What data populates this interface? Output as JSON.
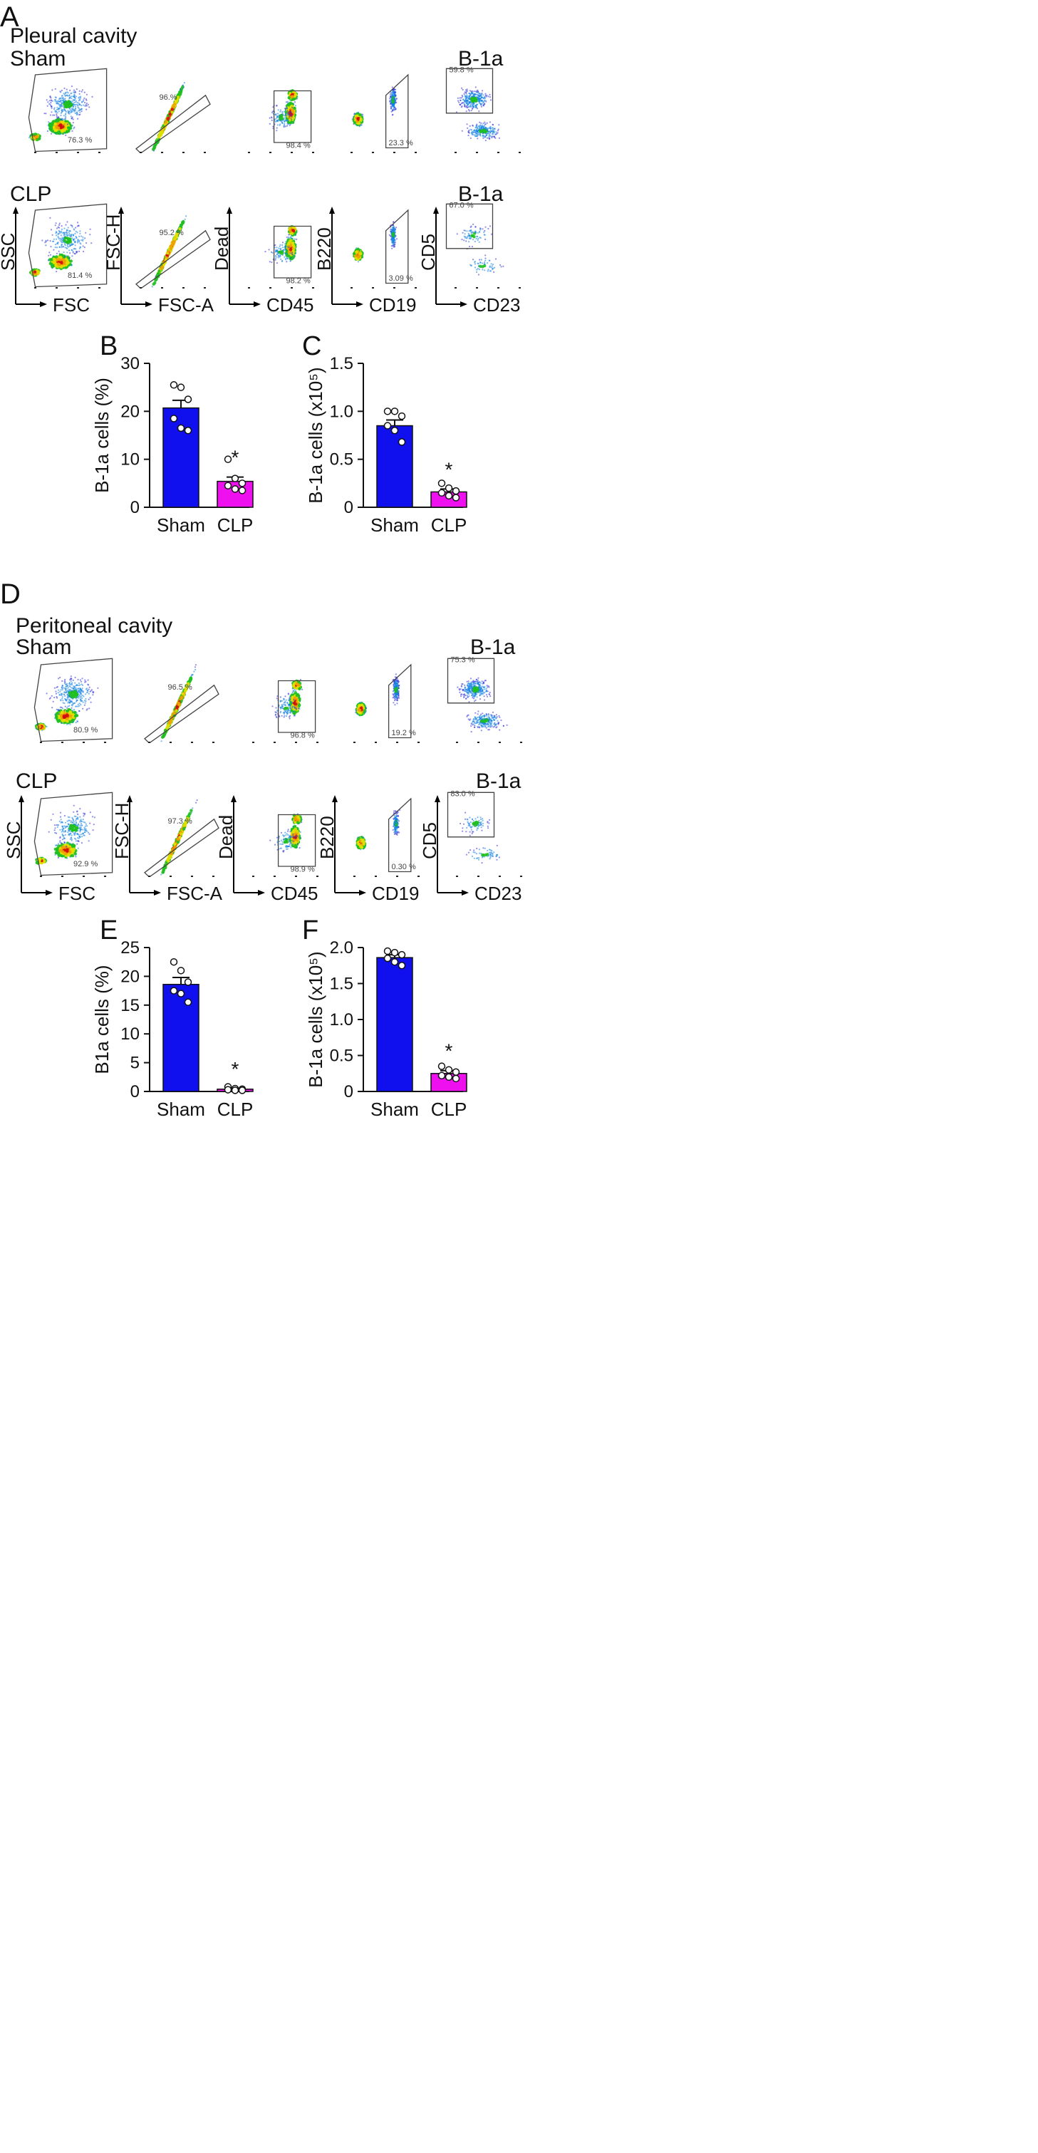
{
  "figure": {
    "panel_a": {
      "letter": "A",
      "title": "Pleural cavity",
      "rows": [
        {
          "label": "Sham",
          "b1a_label": "B-1a",
          "plots": [
            {
              "gate": "76.3 %",
              "xlabel": "",
              "ylabel": ""
            },
            {
              "gate": "96.%",
              "xlabel": "",
              "ylabel": ""
            },
            {
              "gate": "98.4 %",
              "xlabel": "",
              "ylabel": ""
            },
            {
              "gate": "23.3 %",
              "xlabel": "",
              "ylabel": ""
            },
            {
              "gate": "59.8 %",
              "xlabel": "",
              "ylabel": ""
            }
          ]
        },
        {
          "label": "CLP",
          "b1a_label": "B-1a",
          "plots": [
            {
              "gate": "81.4 %",
              "xlabel": "FSC",
              "ylabel": "SSC"
            },
            {
              "gate": "95.2 %",
              "xlabel": "FSC-A",
              "ylabel": "FSC-H"
            },
            {
              "gate": "98.2 %",
              "xlabel": "CD45",
              "ylabel": "Dead"
            },
            {
              "gate": "3.09 %",
              "xlabel": "CD19",
              "ylabel": "B220"
            },
            {
              "gate": "67.0 %",
              "xlabel": "CD23",
              "ylabel": "CD5"
            }
          ]
        }
      ]
    },
    "panel_d": {
      "letter": "D",
      "title": "Peritoneal cavity",
      "rows": [
        {
          "label": "Sham",
          "b1a_label": "B-1a",
          "plots": [
            {
              "gate": "80.9 %",
              "xlabel": "",
              "ylabel": ""
            },
            {
              "gate": "96.5 %",
              "xlabel": "",
              "ylabel": ""
            },
            {
              "gate": "96.8 %",
              "xlabel": "",
              "ylabel": ""
            },
            {
              "gate": "19.2 %",
              "xlabel": "",
              "ylabel": ""
            },
            {
              "gate": "75.3 %",
              "xlabel": "",
              "ylabel": ""
            }
          ]
        },
        {
          "label": "CLP",
          "b1a_label": "B-1a",
          "plots": [
            {
              "gate": "92.9 %",
              "xlabel": "FSC",
              "ylabel": "SSC"
            },
            {
              "gate": "97.3 %",
              "xlabel": "FSC-A",
              "ylabel": "FSC-H"
            },
            {
              "gate": "98.9 %",
              "xlabel": "CD45",
              "ylabel": "Dead"
            },
            {
              "gate": "0.30 %",
              "xlabel": "CD19",
              "ylabel": "B220"
            },
            {
              "gate": "83.0 %",
              "xlabel": "CD23",
              "ylabel": "CD5"
            }
          ]
        }
      ]
    }
  },
  "colors": {
    "sham": "#1010ee",
    "clp": "#ee10ee",
    "axis": "#111111"
  },
  "chart_data": [
    {
      "letter": "B",
      "type": "bar",
      "categories": [
        "Sham",
        "CLP"
      ],
      "values": [
        20.7,
        5.4
      ],
      "errors": [
        1.6,
        0.9
      ],
      "points": [
        [
          25.5,
          25.0,
          22.5,
          18.5,
          16.5,
          16.0
        ],
        [
          10.0,
          6.0,
          5.0,
          4.5,
          3.8,
          3.5
        ]
      ],
      "significance": [
        "",
        "*"
      ],
      "ylabel": "B-1a cells (%)",
      "ylim": [
        0,
        30
      ],
      "yticks": [
        0,
        10,
        20,
        30
      ]
    },
    {
      "letter": "C",
      "type": "bar",
      "categories": [
        "Sham",
        "CLP"
      ],
      "values": [
        0.85,
        0.16
      ],
      "errors": [
        0.06,
        0.03
      ],
      "points": [
        [
          1.0,
          1.0,
          0.95,
          0.85,
          0.8,
          0.68
        ],
        [
          0.25,
          0.2,
          0.17,
          0.15,
          0.12,
          0.1
        ]
      ],
      "significance": [
        "",
        "*"
      ],
      "ylabel": "B-1a cells (x10⁵)",
      "ylim": [
        0,
        1.5
      ],
      "yticks": [
        "0",
        "0.5",
        "1.0",
        "1.5"
      ]
    },
    {
      "letter": "E",
      "type": "bar",
      "categories": [
        "Sham",
        "CLP"
      ],
      "values": [
        18.6,
        0.4
      ],
      "errors": [
        1.2,
        0.1
      ],
      "points": [
        [
          22.5,
          21.0,
          19.0,
          17.5,
          17.0,
          15.5
        ],
        [
          0.8,
          0.5,
          0.4,
          0.3,
          0.2,
          0.2
        ]
      ],
      "significance": [
        "",
        "*"
      ],
      "ylabel": "B1a cells (%)",
      "ylim": [
        0,
        25
      ],
      "yticks": [
        0,
        5,
        10,
        15,
        20,
        25
      ]
    },
    {
      "letter": "F",
      "type": "bar",
      "categories": [
        "Sham",
        "CLP"
      ],
      "values": [
        1.86,
        0.25
      ],
      "errors": [
        0.04,
        0.04
      ],
      "points": [
        [
          1.95,
          1.93,
          1.9,
          1.85,
          1.8,
          1.75
        ],
        [
          0.35,
          0.3,
          0.27,
          0.22,
          0.2,
          0.18
        ]
      ],
      "significance": [
        "",
        "*"
      ],
      "ylabel": "B-1a cells (x10⁵)",
      "ylim": [
        0,
        2.0
      ],
      "yticks": [
        "0",
        "0.5",
        "1.0",
        "1.5",
        "2.0"
      ]
    }
  ]
}
